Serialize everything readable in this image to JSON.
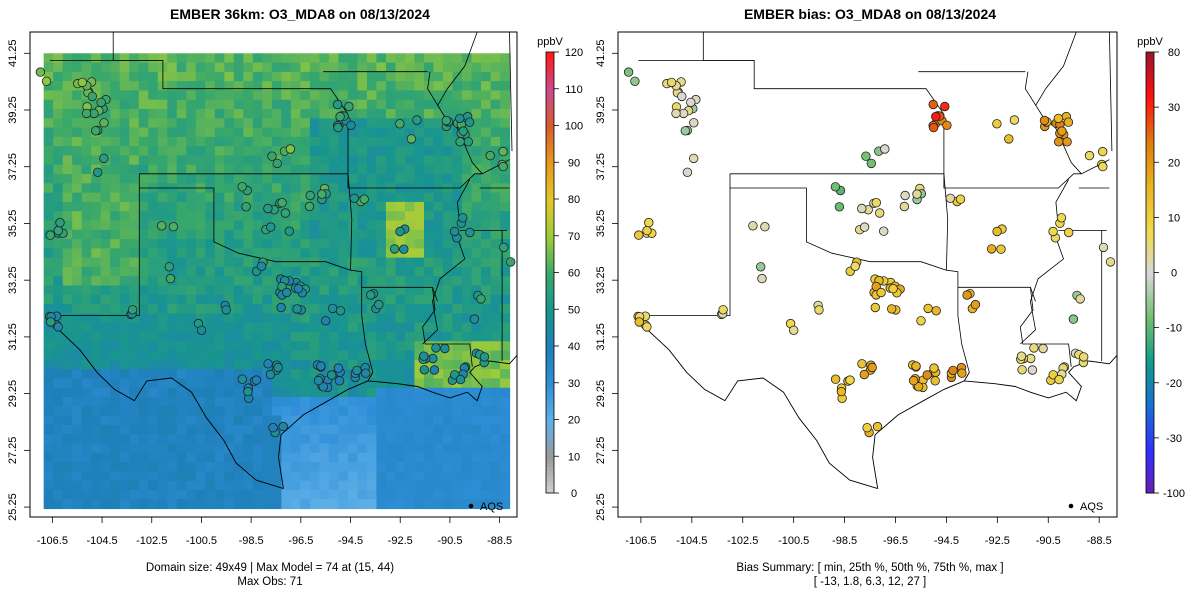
{
  "left_panel": {
    "title": "EMBER 36km: O3_MDA8 on 08/13/2024",
    "footer_line1": "Domain size: 49x49 | Max Model = 74 at (15, 44)",
    "footer_line2": "Max Obs: 71",
    "legend_label": "AQS",
    "colorbar_units": "ppbV",
    "colorbar_ticks": [
      "0",
      "10",
      "20",
      "30",
      "40",
      "50",
      "60",
      "70",
      "80",
      "90",
      "100",
      "110",
      "120"
    ]
  },
  "right_panel": {
    "title": "EMBER bias: O3_MDA8 on 08/13/2024",
    "footer_line1": "Bias Summary: [ min, 25th %, 50th %, 75th %, max ]",
    "footer_line2": "[ -13,   1.8,   6.3,   12,   27 ]",
    "legend_label": "AQS",
    "colorbar_units": "ppbV",
    "colorbar_ticks": [
      "-100",
      "-30",
      "-20",
      "-10",
      "0",
      "10",
      "20",
      "30",
      "80"
    ]
  },
  "axes": {
    "x_ticks": [
      "-106.5",
      "-104.5",
      "-102.5",
      "-100.5",
      "-98.5",
      "-96.5",
      "-94.5",
      "-92.5",
      "-90.5",
      "-88.5"
    ],
    "y_ticks": [
      "25.25",
      "27.25",
      "29.25",
      "31.25",
      "33.25",
      "35.25",
      "37.25",
      "39.25",
      "41.25"
    ]
  },
  "colors": {
    "model_scale": [
      "#d3d3d3",
      "#9a9a9a",
      "#5fb0e6",
      "#2f8fd8",
      "#1f7fb8",
      "#19958f",
      "#3aa86a",
      "#9ccb3c",
      "#e3c829",
      "#e59a1f",
      "#d65e2e",
      "#cc4a8b",
      "#ff1a1a"
    ],
    "bias_scale": [
      "#6a1fb0",
      "#3030ff",
      "#1a6fd0",
      "#129a8a",
      "#6fbf6f",
      "#d8d8d8",
      "#f0d94a",
      "#e8b520",
      "#dd7a10",
      "#ff1010",
      "#a0142a"
    ]
  }
}
